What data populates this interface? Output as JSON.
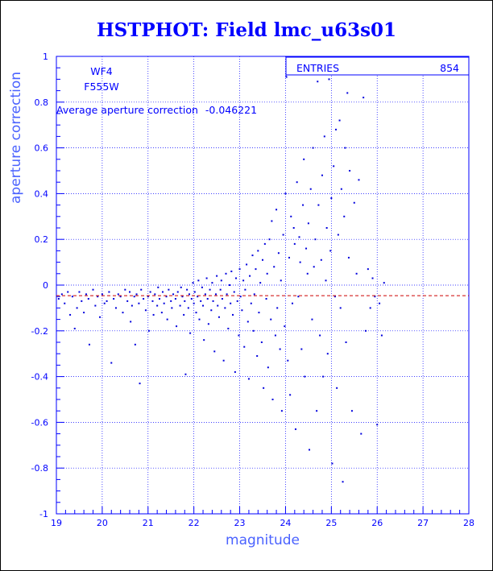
{
  "chart_data": {
    "type": "scatter",
    "title": "HSTPHOT: Field lmc_u63s01",
    "xlabel": "magnitude",
    "ylabel": "aperture correction",
    "xlim": [
      19,
      28
    ],
    "ylim": [
      -1,
      1
    ],
    "x_ticks": [
      19,
      20,
      21,
      22,
      23,
      24,
      25,
      26,
      27,
      28
    ],
    "y_ticks": [
      -1,
      -0.8,
      -0.6,
      -0.4,
      -0.2,
      0,
      0.2,
      0.4,
      0.6,
      0.8,
      1
    ],
    "grid": true,
    "grid_style": "dotted",
    "annotations": {
      "chip": "WF4",
      "filter": "F555W",
      "average_label": "Average aperture correction",
      "average_value": -0.046221
    },
    "reference_line": {
      "y": -0.046221,
      "style": "dashed",
      "color": "#cc0000"
    },
    "stats_box": {
      "label": "ENTRIES",
      "value": "854"
    },
    "point_color": "#0000dd",
    "points": [
      [
        19.05,
        -0.06
      ],
      [
        19.12,
        -0.04
      ],
      [
        19.18,
        -0.08
      ],
      [
        19.25,
        -0.03
      ],
      [
        19.3,
        -0.13
      ],
      [
        19.35,
        -0.05
      ],
      [
        19.4,
        -0.19
      ],
      [
        19.45,
        -0.1
      ],
      [
        19.5,
        -0.03
      ],
      [
        19.55,
        -0.07
      ],
      [
        19.6,
        -0.12
      ],
      [
        19.65,
        -0.04
      ],
      [
        19.7,
        -0.06
      ],
      [
        19.72,
        -0.26
      ],
      [
        19.8,
        -0.02
      ],
      [
        19.85,
        -0.09
      ],
      [
        19.9,
        -0.05
      ],
      [
        19.95,
        -0.14
      ],
      [
        20.0,
        -0.04
      ],
      [
        20.05,
        -0.08
      ],
      [
        20.1,
        -0.07
      ],
      [
        20.15,
        -0.03
      ],
      [
        20.2,
        -0.34
      ],
      [
        20.25,
        -0.06
      ],
      [
        20.3,
        -0.1
      ],
      [
        20.35,
        -0.04
      ],
      [
        20.4,
        -0.05
      ],
      [
        20.45,
        -0.12
      ],
      [
        20.5,
        -0.02
      ],
      [
        20.55,
        -0.07
      ],
      [
        20.6,
        -0.03
      ],
      [
        20.62,
        -0.16
      ],
      [
        20.65,
        -0.09
      ],
      [
        20.7,
        -0.05
      ],
      [
        20.72,
        -0.26
      ],
      [
        20.75,
        -0.04
      ],
      [
        20.8,
        -0.08
      ],
      [
        20.82,
        -0.43
      ],
      [
        20.85,
        -0.02
      ],
      [
        20.9,
        -0.06
      ],
      [
        20.95,
        -0.11
      ],
      [
        21.0,
        -0.05
      ],
      [
        21.02,
        -0.2
      ],
      [
        21.05,
        -0.03
      ],
      [
        21.1,
        -0.07
      ],
      [
        21.12,
        -0.13
      ],
      [
        21.15,
        -0.04
      ],
      [
        21.2,
        -0.09
      ],
      [
        21.22,
        -0.01
      ],
      [
        21.25,
        -0.06
      ],
      [
        21.3,
        -0.12
      ],
      [
        21.32,
        -0.03
      ],
      [
        21.35,
        -0.08
      ],
      [
        21.4,
        -0.05
      ],
      [
        21.42,
        -0.15
      ],
      [
        21.45,
        -0.02
      ],
      [
        21.5,
        -0.07
      ],
      [
        21.52,
        -0.1
      ],
      [
        21.55,
        -0.04
      ],
      [
        21.6,
        -0.06
      ],
      [
        21.62,
        -0.18
      ],
      [
        21.65,
        -0.03
      ],
      [
        21.7,
        -0.09
      ],
      [
        21.72,
        -0.01
      ],
      [
        21.75,
        -0.05
      ],
      [
        21.78,
        -0.13
      ],
      [
        21.8,
        -0.07
      ],
      [
        21.82,
        -0.39
      ],
      [
        21.85,
        -0.02
      ],
      [
        21.88,
        -0.1
      ],
      [
        21.9,
        -0.04
      ],
      [
        21.92,
        -0.21
      ],
      [
        21.95,
        -0.06
      ],
      [
        21.98,
        0.01
      ],
      [
        22.0,
        -0.08
      ],
      [
        22.02,
        -0.03
      ],
      [
        22.05,
        -0.12
      ],
      [
        22.08,
        -0.05
      ],
      [
        22.1,
        0.02
      ],
      [
        22.12,
        -0.15
      ],
      [
        22.15,
        -0.07
      ],
      [
        22.18,
        -0.01
      ],
      [
        22.2,
        -0.09
      ],
      [
        22.22,
        -0.24
      ],
      [
        22.25,
        -0.04
      ],
      [
        22.28,
        0.03
      ],
      [
        22.3,
        -0.06
      ],
      [
        22.32,
        -0.17
      ],
      [
        22.35,
        -0.02
      ],
      [
        22.38,
        -0.11
      ],
      [
        22.4,
        0.01
      ],
      [
        22.42,
        -0.07
      ],
      [
        22.45,
        -0.29
      ],
      [
        22.48,
        -0.04
      ],
      [
        22.5,
        0.04
      ],
      [
        22.52,
        -0.09
      ],
      [
        22.55,
        -0.14
      ],
      [
        22.58,
        -0.02
      ],
      [
        22.6,
        0.02
      ],
      [
        22.62,
        -0.06
      ],
      [
        22.65,
        -0.33
      ],
      [
        22.68,
        -0.1
      ],
      [
        22.7,
        0.05
      ],
      [
        22.72,
        -0.04
      ],
      [
        22.75,
        -0.19
      ],
      [
        22.78,
        0.0
      ],
      [
        22.8,
        -0.08
      ],
      [
        22.82,
        0.06
      ],
      [
        22.85,
        -0.13
      ],
      [
        22.88,
        -0.03
      ],
      [
        22.9,
        -0.38
      ],
      [
        22.92,
        0.03
      ],
      [
        22.95,
        -0.07
      ],
      [
        22.98,
        -0.22
      ],
      [
        23.0,
        0.07
      ],
      [
        23.02,
        -0.05
      ],
      [
        23.05,
        -0.11
      ],
      [
        23.08,
        0.02
      ],
      [
        23.1,
        -0.27
      ],
      [
        23.12,
        -0.02
      ],
      [
        23.15,
        0.09
      ],
      [
        23.18,
        -0.16
      ],
      [
        23.2,
        -0.41
      ],
      [
        23.22,
        0.04
      ],
      [
        23.25,
        -0.08
      ],
      [
        23.28,
        0.13
      ],
      [
        23.3,
        -0.2
      ],
      [
        23.32,
        -0.04
      ],
      [
        23.35,
        0.07
      ],
      [
        23.38,
        -0.31
      ],
      [
        23.4,
        0.15
      ],
      [
        23.42,
        -0.12
      ],
      [
        23.45,
        0.01
      ],
      [
        23.48,
        -0.25
      ],
      [
        23.5,
        0.11
      ],
      [
        23.52,
        -0.45
      ],
      [
        23.55,
        0.18
      ],
      [
        23.58,
        -0.06
      ],
      [
        23.6,
        0.05
      ],
      [
        23.62,
        -0.36
      ],
      [
        23.65,
        0.2
      ],
      [
        23.68,
        -0.15
      ],
      [
        23.7,
        0.28
      ],
      [
        23.72,
        -0.5
      ],
      [
        23.75,
        0.08
      ],
      [
        23.78,
        -0.22
      ],
      [
        23.8,
        0.33
      ],
      [
        23.82,
        -0.1
      ],
      [
        23.85,
        0.14
      ],
      [
        23.88,
        -0.28
      ],
      [
        23.9,
        0.02
      ],
      [
        23.92,
        -0.55
      ],
      [
        23.95,
        0.22
      ],
      [
        23.98,
        -0.18
      ],
      [
        24.0,
        0.4
      ],
      [
        24.02,
        0.91
      ],
      [
        24.05,
        -0.33
      ],
      [
        24.08,
        0.12
      ],
      [
        24.1,
        -0.48
      ],
      [
        24.12,
        0.3
      ],
      [
        24.15,
        -0.08
      ],
      [
        24.18,
        0.25
      ],
      [
        24.2,
        0.18
      ],
      [
        24.22,
        -0.63
      ],
      [
        24.25,
        0.45
      ],
      [
        24.28,
        -0.05
      ],
      [
        24.3,
        0.21
      ],
      [
        24.32,
        0.1
      ],
      [
        24.35,
        -0.28
      ],
      [
        24.38,
        0.35
      ],
      [
        24.4,
        0.55
      ],
      [
        24.42,
        -0.4
      ],
      [
        24.45,
        0.16
      ],
      [
        24.48,
        0.05
      ],
      [
        24.5,
        0.27
      ],
      [
        24.52,
        -0.72
      ],
      [
        24.55,
        0.42
      ],
      [
        24.58,
        -0.15
      ],
      [
        24.6,
        0.6
      ],
      [
        24.62,
        0.08
      ],
      [
        24.65,
        0.2
      ],
      [
        24.68,
        -0.55
      ],
      [
        24.7,
        0.89
      ],
      [
        24.72,
        0.35
      ],
      [
        24.75,
        -0.22
      ],
      [
        24.78,
        0.11
      ],
      [
        24.8,
        0.48
      ],
      [
        24.82,
        -0.4
      ],
      [
        24.85,
        0.65
      ],
      [
        24.88,
        0.02
      ],
      [
        24.9,
        0.25
      ],
      [
        24.92,
        -0.3
      ],
      [
        24.95,
        0.9
      ],
      [
        24.98,
        0.15
      ],
      [
        25.0,
        0.38
      ],
      [
        25.02,
        -0.78
      ],
      [
        25.05,
        0.52
      ],
      [
        25.08,
        -0.05
      ],
      [
        25.1,
        0.68
      ],
      [
        25.12,
        -0.45
      ],
      [
        25.15,
        0.22
      ],
      [
        25.18,
        0.72
      ],
      [
        25.2,
        -0.1
      ],
      [
        25.22,
        0.42
      ],
      [
        25.25,
        -0.86
      ],
      [
        25.28,
        0.3
      ],
      [
        25.3,
        0.6
      ],
      [
        25.32,
        -0.25
      ],
      [
        25.35,
        0.84
      ],
      [
        25.38,
        0.12
      ],
      [
        25.4,
        0.5
      ],
      [
        25.45,
        -0.55
      ],
      [
        25.5,
        0.36
      ],
      [
        25.55,
        0.05
      ],
      [
        25.6,
        0.46
      ],
      [
        25.65,
        -0.65
      ],
      [
        25.7,
        0.82
      ],
      [
        25.75,
        -0.2
      ],
      [
        25.8,
        0.07
      ],
      [
        25.85,
        -0.1
      ],
      [
        25.9,
        0.03
      ],
      [
        25.95,
        -0.05
      ],
      [
        26.0,
        -0.61
      ],
      [
        26.05,
        -0.08
      ],
      [
        26.1,
        -0.22
      ],
      [
        26.15,
        0.01
      ]
    ]
  }
}
